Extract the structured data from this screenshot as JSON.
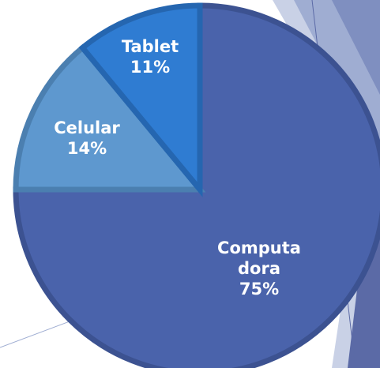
{
  "chart_data": {
    "type": "pie",
    "categories": [
      "Computadora",
      "Celular",
      "Tablet"
    ],
    "values": [
      75,
      14,
      11
    ],
    "value_labels": [
      "75%",
      "14%",
      "11%"
    ],
    "colors": [
      "#4a63ab",
      "#5e98cf",
      "#2f7cd2"
    ]
  }
}
